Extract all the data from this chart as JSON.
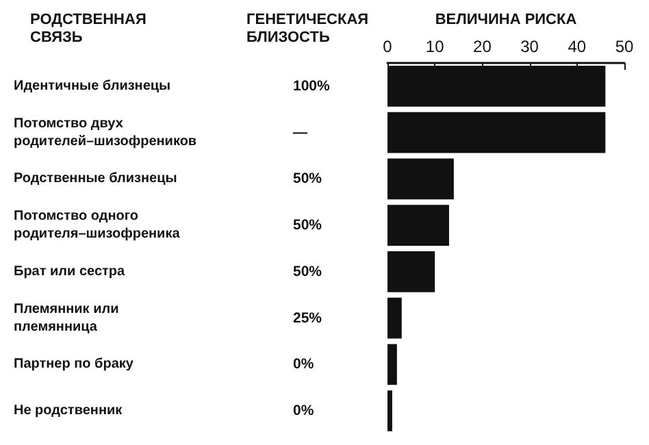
{
  "chart_data": {
    "type": "bar",
    "orientation": "horizontal",
    "x2label": "ВЕЛИЧИНА РИСКА",
    "ylabel": "РОДСТВЕННАЯ СВЯЗЬ",
    "y2label": "ГЕНЕТИЧЕСКАЯ БЛИЗОСТЬ",
    "categories": [
      "Идентичные близнецы",
      "Потомство двух родителей–шизофреников",
      "Родственные близнецы",
      "Потомство одного родителя–шизофреника",
      "Брат или сестра",
      "Племянник или племянница",
      "Партнер по браку",
      "Не родственник"
    ],
    "y2_categories": [
      "100%",
      "—",
      "50%",
      "50%",
      "50%",
      "25%",
      "0%",
      "0%"
    ],
    "series": [
      {
        "color": "#111111",
        "axis": "x2",
        "values": [
          46,
          46,
          14,
          13,
          10,
          3,
          2,
          1
        ]
      }
    ],
    "x2lim": [
      0,
      50
    ],
    "x2ticks": [
      0,
      10,
      20,
      30,
      40,
      50
    ]
  }
}
